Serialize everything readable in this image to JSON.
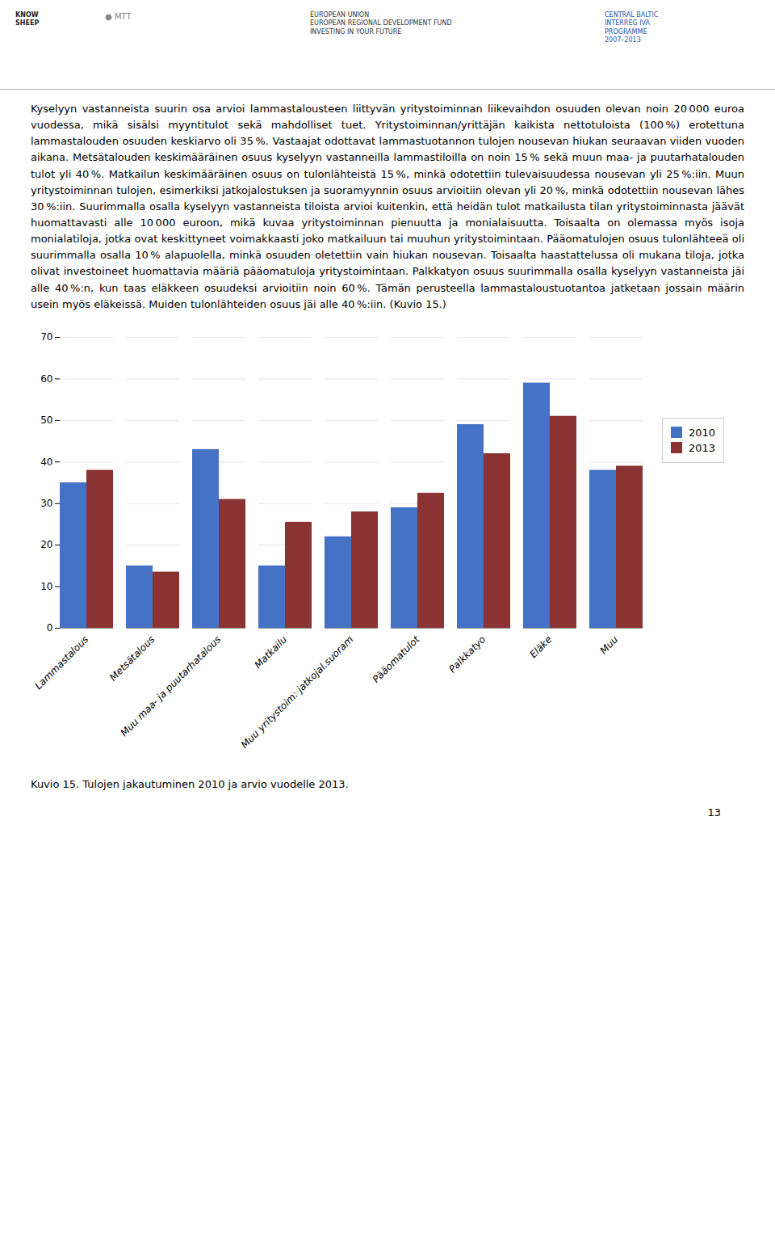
{
  "chart_data": {
    "type": "bar",
    "caption": "Kuvio 15. Tulojen jakautuminen 2010 ja arvio vuodelle 2013.",
    "annotations": [
      "KNOW\nSHEEP",
      "● MTT",
      "EUROPEAN UNION\nEUROPEAN REGIONAL DEVELOPMENT FUND\nINVESTING IN YOUR FUTURE",
      "CENTRAL BALTIC\nINTERREG IVA\nPROGRAMME\n2007–2013",
      "Kyselyyn vastanneista suurin osa arvioi lammastalousteen liittyvän yritystoiminnan liikevaihdon osuuden olevan noin 20 000 euroa vuodessa, mikä sisälsi myyntitulot sekä mahdolliset tuet. Yritystoiminnan/yrittäjän kaikista nettotuloista (100 %) erotettuna lammastalouden osuuden keskiarvo oli 35 %. Vastaajat odottavat lammastuotannon tulojen nousevan hiukan seuraavan viiden vuoden aikana. Metsätalouden keskimääräinen osuus kyselyyn vastanneilla lammastiloilla on noin 15 % sekä muun maa- ja puutarhatalouden tulot yli 40 %. Matkailun keskimääräinen osuus on tulonlähteistä 15 %, minkä odotettiin tulevaisuudessa nousevan yli 25 %:iin. Muun yritystoiminnan tulojen, esimerkiksi jatkojalostuksen ja suoramyynnin osuus arvioitiin olevan yli 20 %, minkä odotettiin nousevan lähes 30 %:iin. Suurimmalla osalla kyselyyn vastanneista tiloista arvioi kuitenkin, että heidän tulot matkailusta tilan yritystoiminnasta jäävät huomattavasti alle 10 000 euroon, mikä kuvaa yritystoiminnan pienuutta ja monialaisuutta. Toisaalta on olemassa myös isoja monialatiloja, jotka ovat keskittyneet voimakkaasti joko matkailuun tai muuhun yritystoimintaan. Pääomatulojen osuus tulonlähteeä oli suurimmalla osalla 10 % alapuolella, minkä osuuden oletettiin vain hiukan nousevan. Toisaalta haastattelussa oli mukana tiloja, jotka olivat investoineet huomattavia määriä pääomatuloja yritystoimintaan. Palkkatyon osuus suurimmalla osalla kyselyyn vastanneista jäi alle 40 %:n, kun taas eläkkeen osuudeksi arvioitiin noin 60 %. Tämän perusteella lammastaloustuotantoa jatketaan jossain määrin usein myös eläkeissä. Muiden tulonlähteiden osuus jäi alle 40 %:iin. (Kuvio 15.)",
      "13"
    ],
    "categories": [
      "Lammastalous",
      "Metsätalous",
      "Muu maa- ja puutarhatalous",
      "Matkailu",
      "Muu yritystoim: jatkojal.suoram",
      "Pääomatulot",
      "Palkkatyo",
      "Eläke",
      "Muu"
    ],
    "series": [
      {
        "name": "2010",
        "color": "#4472C4",
        "values": [
          35,
          15,
          43,
          15,
          22,
          29,
          49,
          59,
          38
        ]
      },
      {
        "name": "2013",
        "color": "#8B3333",
        "values": [
          38,
          13.5,
          31,
          25.5,
          28,
          32.5,
          42,
          51,
          39
        ]
      }
    ],
    "ylim": [
      0,
      70
    ],
    "yticks": [
      0,
      10,
      20,
      30,
      40,
      50,
      60,
      70
    ],
    "grid": true,
    "legend": "right"
  }
}
